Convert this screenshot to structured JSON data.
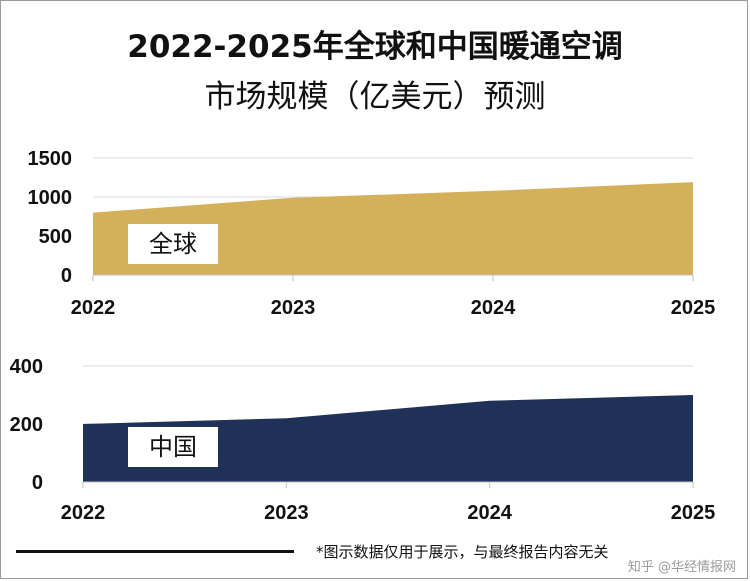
{
  "title_line1": "2022-2025年全球和中国暖通空调",
  "title_line2": "市场规模（亿美元）预测",
  "footer_note": "*图示数据仅用于展示，与最终报告内容无关",
  "watermark": "知乎 @华经情报网",
  "colors": {
    "global": "#d4b05a",
    "china": "#1f3157",
    "grid": "#d9d9d9"
  },
  "chart_data": [
    {
      "type": "area",
      "x": [
        "2022",
        "2023",
        "2024",
        "2025"
      ],
      "series": [
        {
          "name": "全球",
          "values": [
            800,
            990,
            1080,
            1190
          ]
        }
      ],
      "yticks": [
        0,
        500,
        1000,
        1500
      ],
      "ylim": [
        0,
        1500
      ],
      "grid": true
    },
    {
      "type": "area",
      "x": [
        "2022",
        "2023",
        "2024",
        "2025"
      ],
      "series": [
        {
          "name": "中国",
          "values": [
            200,
            220,
            280,
            300
          ]
        }
      ],
      "yticks": [
        0,
        200,
        400
      ],
      "ylim": [
        0,
        400
      ],
      "grid": true
    }
  ]
}
